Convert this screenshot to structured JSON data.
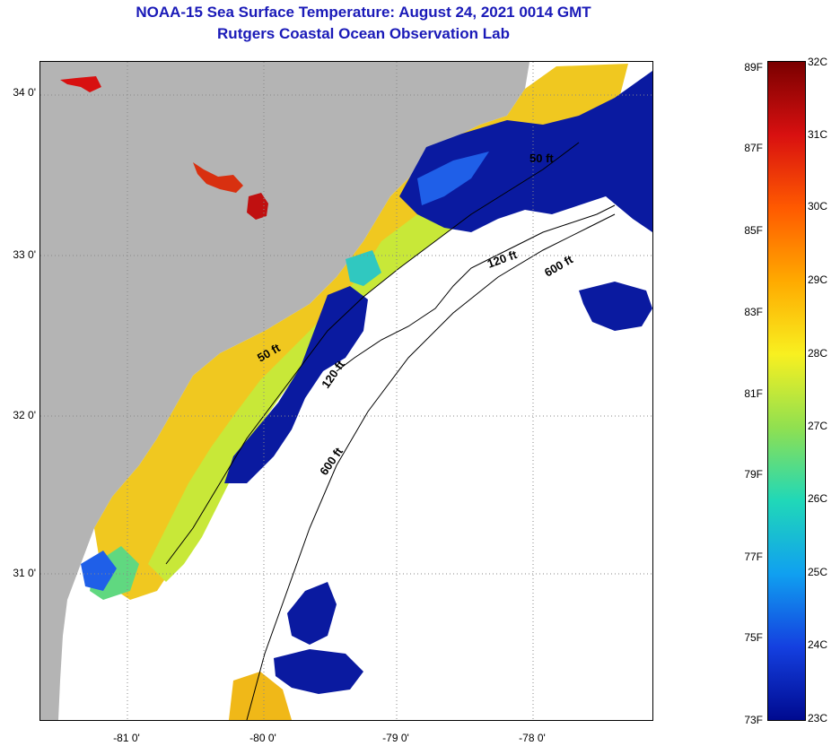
{
  "title": {
    "line1": "NOAA-15 Sea Surface Temperature:  August 24, 2021 0014 GMT",
    "line2": "Rutgers Coastal Ocean Observation Lab"
  },
  "map": {
    "lat_labels": [
      "34 0'",
      "33 0'",
      "32 0'",
      "31 0'"
    ],
    "lon_labels": [
      "-81 0'",
      "-80 0'",
      "-79 0'",
      "-78 0'"
    ],
    "contour_labels": [
      "50 ft",
      "120 ft",
      "600 ft",
      "50 ft",
      "120 ft",
      "600 ft"
    ],
    "colors": {
      "land": "#b4b4b4",
      "no_data": "#ffffff",
      "cold": "#0a1aa0",
      "cool": "#1f5fe8",
      "mid": "#20d0c0",
      "mild": "#a8e040",
      "warm": "#f0e020",
      "hot": "#f8b818",
      "very_hot": "#e8281a"
    }
  },
  "colorbar": {
    "fahrenheit_labels": [
      "89F",
      "87F",
      "85F",
      "83F",
      "81F",
      "79F",
      "77F",
      "75F",
      "73F"
    ],
    "celsius_labels": [
      "32C",
      "31C",
      "30C",
      "29C",
      "28C",
      "27C",
      "26C",
      "25C",
      "24C",
      "23C"
    ],
    "gradient_colors": [
      "#7a0000",
      "#d81010",
      "#ff5a00",
      "#ffaa00",
      "#f8f020",
      "#90e050",
      "#20d8b8",
      "#10a0f0",
      "#1440e0",
      "#000a90"
    ]
  }
}
